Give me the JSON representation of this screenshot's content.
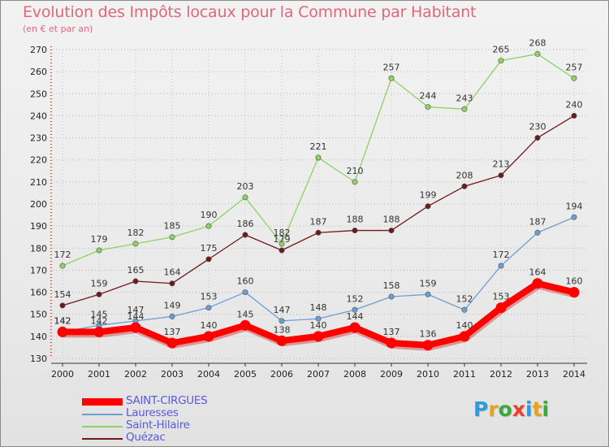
{
  "title": "Evolution des Impôts locaux pour la Commune par Habitant",
  "subtitle": "(en € et par an)",
  "logo": {
    "text": "Proxiti",
    "colors": [
      "#2a9be0",
      "#e8a21c",
      "#3aa83a",
      "#e8402a",
      "#2a9be0",
      "#e8a21c",
      "#3aa83a"
    ]
  },
  "chart_data": {
    "type": "line",
    "title": "Evolution des Impôts locaux pour la Commune par Habitant",
    "subtitle": "(en € et par an)",
    "xlabel": "",
    "ylabel": "",
    "x": [
      2000,
      2001,
      2002,
      2003,
      2004,
      2005,
      2006,
      2007,
      2008,
      2009,
      2010,
      2011,
      2012,
      2013,
      2014
    ],
    "ylim": [
      130,
      270
    ],
    "yticks": [
      130,
      140,
      150,
      160,
      170,
      180,
      190,
      200,
      210,
      220,
      230,
      240,
      250,
      260,
      270
    ],
    "grid": "horizontal-dotted",
    "legend": "bottom-left",
    "series": [
      {
        "name": "SAINT-CIRGUES",
        "color": "#ff0000",
        "values": [
          142,
          142,
          144,
          137,
          140,
          145,
          138,
          140,
          144,
          137,
          136,
          140,
          153,
          164,
          160
        ],
        "style": "thick"
      },
      {
        "name": "Lauresses",
        "color": "#6a9fd4",
        "values": [
          142,
          145,
          147,
          149,
          153,
          160,
          147,
          148,
          152,
          158,
          159,
          152,
          172,
          187,
          194
        ],
        "style": "thin"
      },
      {
        "name": "Saint-Hilaire",
        "color": "#8fd162",
        "values": [
          172,
          179,
          182,
          185,
          190,
          203,
          182,
          221,
          210,
          257,
          244,
          243,
          265,
          268,
          257
        ],
        "style": "thin"
      },
      {
        "name": "Quézac",
        "color": "#6e1a1a",
        "values": [
          154,
          159,
          165,
          164,
          175,
          186,
          179,
          187,
          188,
          188,
          199,
          208,
          213,
          230,
          240
        ],
        "style": "thin"
      }
    ]
  }
}
